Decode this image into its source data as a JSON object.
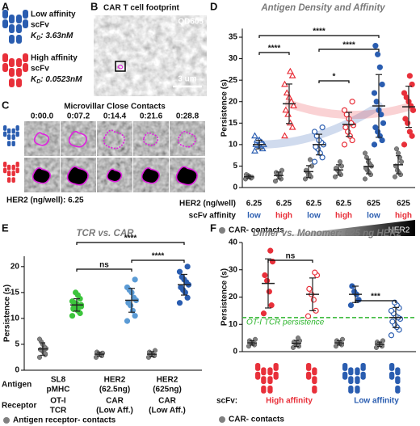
{
  "panel_a": {
    "letter": "A",
    "antibodies": [
      {
        "name_lines": [
          "Low affinity",
          "scFv"
        ],
        "kd_symbol": "K",
        "kd_subscript": "D",
        "kd_value": ": 3.63nM",
        "color": "#2a5db0"
      },
      {
        "name_lines": [
          "High affinity",
          "scFv"
        ],
        "kd_symbol": "K",
        "kd_subscript": "D",
        "kd_value": ": 0.0523nM",
        "color": "#e8303a"
      }
    ]
  },
  "panel_b": {
    "letter": "B",
    "title": "CAR T cell footprint",
    "channel": "QD605",
    "scale_bar": "3 um"
  },
  "panel_c": {
    "letter": "C",
    "title": "Microvillar Close Contacts",
    "timestamps": [
      "0:00.0",
      "0:07.2",
      "0:14.4",
      "0:21.6",
      "0:28.8"
    ],
    "caption": "HER2 (ng/well): 6.25"
  },
  "chart_data": [
    {
      "type": "dot_plot",
      "letter": "D",
      "title": "Antigen Density and Affinity",
      "ylabel": "Persistence (s)",
      "ylim": [
        0,
        37
      ],
      "yticks": [
        0,
        5,
        10,
        15,
        20,
        25,
        30,
        35
      ],
      "neg_color": "#808080",
      "row_labels": [
        "HER2 (ng/well)",
        "scFv affinity"
      ],
      "legend": "CAR- contacts",
      "wedge_label": "HER2",
      "significance": [
        "****",
        "*",
        "****",
        "****"
      ],
      "groups": [
        {
          "her2": "6.25",
          "affinity": "low",
          "color": "#2a5db0",
          "marker": "triangle",
          "filled": false,
          "values": [
            8.5,
            9,
            9.5,
            9.8,
            10,
            10,
            10.5,
            11,
            11,
            12
          ],
          "mean": 10,
          "sd": 1,
          "neg_values": [
            2,
            2.2,
            2.5,
            2.8,
            3,
            2.4
          ],
          "neg_mean": 2.5,
          "neg_sd": 0.4
        },
        {
          "her2": "6.25",
          "affinity": "high",
          "color": "#e8303a",
          "marker": "triangle",
          "filled": false,
          "values": [
            12,
            14,
            15,
            17,
            18,
            19,
            20,
            21,
            22,
            24,
            26,
            27
          ],
          "mean": 19.5,
          "sd": 4.6,
          "neg_values": [
            1.5,
            2,
            2.5,
            3,
            3.5,
            4,
            3.2
          ],
          "neg_mean": 2.8,
          "neg_sd": 0.8
        },
        {
          "her2": "62.5",
          "affinity": "low",
          "color": "#2a5db0",
          "marker": "circle",
          "filled": false,
          "values": [
            6,
            7,
            8,
            9,
            9.5,
            10,
            10.5,
            11,
            12,
            13,
            14
          ],
          "mean": 10,
          "sd": 2.4,
          "neg_values": [
            2,
            2.5,
            3,
            3.5,
            4,
            5,
            6.5,
            2.8
          ],
          "neg_mean": 3.7,
          "neg_sd": 1.4
        },
        {
          "her2": "62.5",
          "affinity": "high",
          "color": "#e8303a",
          "marker": "circle",
          "filled": false,
          "values": [
            10,
            11,
            12,
            13,
            14,
            14.5,
            15,
            16,
            17,
            18,
            20
          ],
          "mean": 14.7,
          "sd": 2.8,
          "neg_values": [
            2.5,
            3,
            3.5,
            4,
            4.5,
            5,
            6
          ],
          "neg_mean": 4.1,
          "neg_sd": 1.2
        },
        {
          "her2": "625",
          "affinity": "low",
          "color": "#2a5db0",
          "marker": "circle",
          "filled": true,
          "values": [
            10,
            11,
            12,
            13,
            14,
            15,
            17,
            18,
            20,
            22,
            24,
            28,
            31,
            33
          ],
          "mean": 19,
          "sd": 7.3,
          "neg_values": [
            2,
            3,
            3.5,
            4,
            4.5,
            5,
            5.5,
            6,
            7,
            8
          ],
          "neg_mean": 4.9,
          "neg_sd": 1.7
        },
        {
          "her2": "625",
          "affinity": "high",
          "color": "#e8303a",
          "marker": "circle",
          "filled": true,
          "values": [
            10,
            12,
            13,
            15,
            16,
            18,
            19,
            20,
            21,
            22,
            24,
            26
          ],
          "mean": 18.8,
          "sd": 4.8,
          "neg_values": [
            2.5,
            3,
            3.5,
            4,
            5,
            6,
            7,
            8,
            9
          ],
          "neg_mean": 5.3,
          "neg_sd": 2.1
        }
      ]
    },
    {
      "type": "dot_plot",
      "letter": "E",
      "title": "TCR vs. CAR",
      "ylabel": "Persistence (s)",
      "ylim": [
        0,
        22
      ],
      "yticks": [
        0,
        5,
        10,
        15,
        20
      ],
      "neg_color": "#808080",
      "row_labels": [
        "Antigen",
        "Receptor"
      ],
      "legend": "Antigen receptor- contacts",
      "significance": [
        "****",
        "ns",
        "****"
      ],
      "groups": [
        {
          "antigen": [
            "SL8",
            "pMHC"
          ],
          "receptor": [
            "OT-I",
            "TCR"
          ],
          "color": "#3cc43c",
          "marker": "circle",
          "filled": true,
          "values": [
            10.5,
            11,
            11.5,
            12,
            12,
            12.3,
            12.5,
            12.8,
            13,
            13.3,
            13.8,
            14.5,
            15,
            11.8,
            12.6
          ],
          "mean": 12.6,
          "sd": 1.2,
          "neg_values": [
            2.5,
            3,
            3.5,
            3.8,
            4,
            4.2,
            4.5,
            5,
            5.5,
            6,
            3.2
          ],
          "neg_mean": 4.1,
          "neg_sd": 1.2
        },
        {
          "antigen": [
            "HER2",
            "(62.5ng)"
          ],
          "receptor": [
            "CAR",
            "(Low Aff.)"
          ],
          "color": "#5b9bd5",
          "marker": "circle",
          "filled": true,
          "values": [
            9.5,
            10.5,
            11.5,
            12.5,
            13,
            13.5,
            14,
            15,
            15.5,
            16,
            17.5
          ],
          "mean": 13.5,
          "sd": 2.3,
          "neg_values": [
            2.5,
            2.8,
            3,
            3.2,
            3.5,
            3.3
          ],
          "neg_mean": 3.1,
          "neg_sd": 0.4
        },
        {
          "antigen": [
            "HER2",
            "(625ng)"
          ],
          "receptor": [
            "CAR",
            "(Low Aff.)"
          ],
          "color": "#2a5db0",
          "marker": "circle",
          "filled": true,
          "values": [
            13,
            14,
            15,
            15.5,
            16,
            16.5,
            17,
            17.5,
            18,
            19,
            20
          ],
          "mean": 16.5,
          "sd": 2,
          "neg_values": [
            2.5,
            2.8,
            3,
            3.2,
            3.5,
            3.8
          ],
          "neg_mean": 3.1,
          "neg_sd": 0.5
        }
      ]
    },
    {
      "type": "dot_plot",
      "letter": "F",
      "title": "Dimer vs. Monomer: 625 ng HER2",
      "ylabel": "Persistence (s)",
      "ylim": [
        0,
        40
      ],
      "yticks": [
        0,
        10,
        20,
        30,
        40
      ],
      "neg_color": "#808080",
      "row_label": "scFv:",
      "legend": "CAR- contacts",
      "affinity_labels": [
        {
          "label": "High affinity",
          "color": "#e8303a"
        },
        {
          "label": "Low affinity",
          "color": "#2a5db0"
        }
      ],
      "reference": {
        "value": 12.5,
        "label": "OT-I TCR persistence",
        "color": "#2db52d"
      },
      "significance": [
        "ns",
        "***"
      ],
      "groups": [
        {
          "color": "#e8303a",
          "marker": "circle",
          "filled": true,
          "values": [
            14,
            17,
            22,
            26,
            28,
            33,
            37
          ],
          "mean": 25,
          "sd": 9,
          "neg_values": [
            2,
            2.5,
            3,
            3.5,
            4,
            4.5
          ],
          "neg_mean": 3.2,
          "neg_sd": 0.8
        },
        {
          "color": "#e8303a",
          "marker": "circle",
          "filled": false,
          "values": [
            13,
            15,
            19,
            21,
            23,
            28,
            29
          ],
          "mean": 21,
          "sd": 6,
          "neg_values": [
            1.5,
            2,
            2.5,
            3,
            3.5,
            4,
            5
          ],
          "neg_mean": 3,
          "neg_sd": 1.1
        },
        {
          "color": "#2a5db0",
          "marker": "circle",
          "filled": true,
          "values": [
            17,
            19,
            21,
            22,
            24
          ],
          "mean": 21,
          "sd": 3,
          "neg_values": [
            2,
            2.5,
            3,
            3.5,
            4,
            4.5
          ],
          "neg_mean": 3.2,
          "neg_sd": 0.8
        },
        {
          "color": "#2a5db0",
          "marker": "circle",
          "filled": false,
          "values": [
            6,
            8,
            9,
            10,
            11,
            12,
            12.5,
            13,
            14,
            15,
            16,
            17,
            18
          ],
          "mean": 12.5,
          "sd": 3.7,
          "neg_values": [
            1.5,
            2,
            2.5,
            3,
            3.5,
            4
          ],
          "neg_mean": 2.7,
          "neg_sd": 0.8
        }
      ]
    }
  ]
}
